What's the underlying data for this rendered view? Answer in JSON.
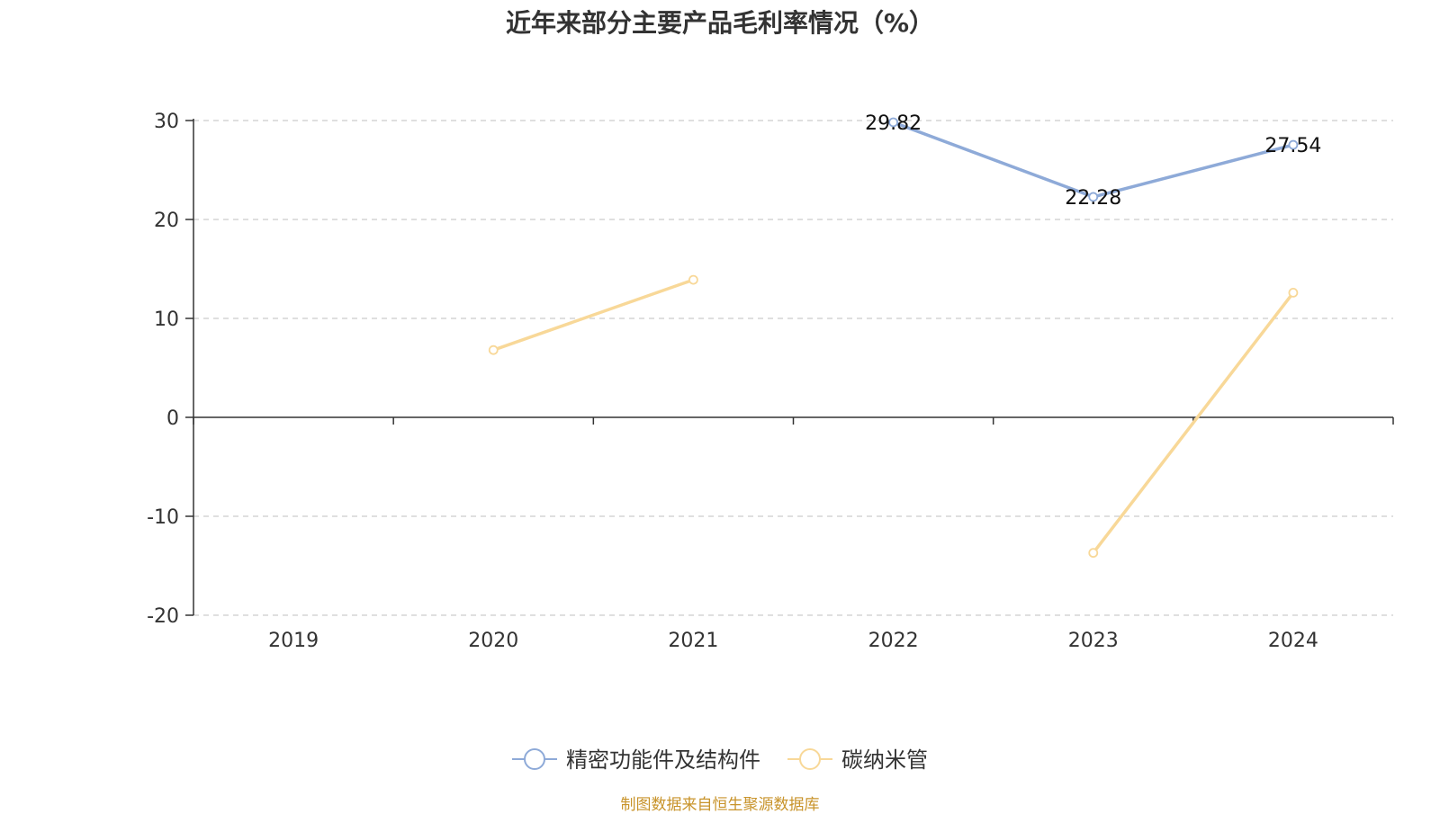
{
  "chart_data": {
    "type": "line",
    "title": "近年来部分主要产品毛利率情况（%）",
    "xlabel": "",
    "ylabel": "",
    "categories": [
      "2019",
      "2020",
      "2021",
      "2022",
      "2023",
      "2024"
    ],
    "ylim": [
      -20,
      30
    ],
    "yticks": [
      30,
      20,
      10,
      0,
      -10,
      -20
    ],
    "grid": true,
    "legend_position": "bottom-center",
    "series": [
      {
        "name": "精密功能件及结构件",
        "color": "#8eaad8",
        "values": [
          null,
          null,
          null,
          29.82,
          22.28,
          27.54
        ],
        "labels": [
          "",
          "",
          "",
          "29.82",
          "22.28",
          "27.54"
        ]
      },
      {
        "name": "碳纳米管",
        "color": "#f8d898",
        "values": [
          null,
          6.8,
          13.9,
          null,
          -13.7,
          12.6
        ],
        "labels": [
          "",
          "",
          "",
          "",
          "",
          ""
        ]
      }
    ]
  },
  "footer": {
    "source": "制图数据来自恒生聚源数据库"
  }
}
